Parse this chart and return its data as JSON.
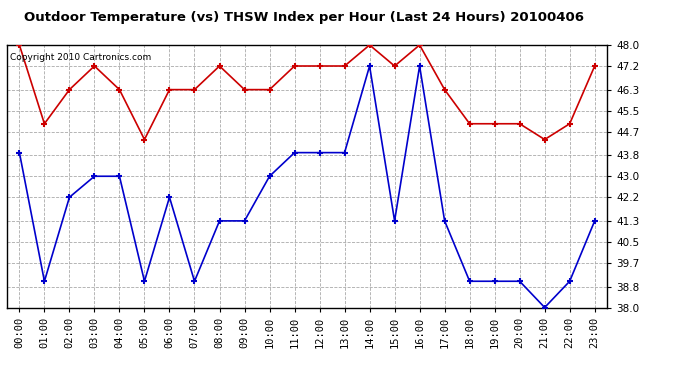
{
  "title": "Outdoor Temperature (vs) THSW Index per Hour (Last 24 Hours) 20100406",
  "copyright": "Copyright 2010 Cartronics.com",
  "hours": [
    "00:00",
    "01:00",
    "02:00",
    "03:00",
    "04:00",
    "05:00",
    "06:00",
    "07:00",
    "08:00",
    "09:00",
    "10:00",
    "11:00",
    "12:00",
    "13:00",
    "14:00",
    "15:00",
    "16:00",
    "17:00",
    "18:00",
    "19:00",
    "20:00",
    "21:00",
    "22:00",
    "23:00"
  ],
  "red_data": [
    48.0,
    45.0,
    46.3,
    47.2,
    46.3,
    44.4,
    46.3,
    46.3,
    47.2,
    46.3,
    46.3,
    47.2,
    47.2,
    47.2,
    48.0,
    47.2,
    48.0,
    46.3,
    45.0,
    45.0,
    45.0,
    44.4,
    45.0,
    47.2
  ],
  "blue_data": [
    43.9,
    39.0,
    42.2,
    43.0,
    43.0,
    39.0,
    42.2,
    39.0,
    41.3,
    41.3,
    43.0,
    43.9,
    43.9,
    43.9,
    47.2,
    41.3,
    47.2,
    41.3,
    39.0,
    39.0,
    39.0,
    38.0,
    39.0,
    41.3
  ],
  "red_color": "#cc0000",
  "blue_color": "#0000cc",
  "bg_color": "#ffffff",
  "grid_color": "#aaaaaa",
  "ylim": [
    38.0,
    48.0
  ],
  "yticks": [
    38.0,
    38.8,
    39.7,
    40.5,
    41.3,
    42.2,
    43.0,
    43.8,
    44.7,
    45.5,
    46.3,
    47.2,
    48.0
  ],
  "title_fontsize": 9.5,
  "tick_fontsize": 7.5,
  "copyright_fontsize": 6.5,
  "figwidth": 6.9,
  "figheight": 3.75,
  "dpi": 100
}
